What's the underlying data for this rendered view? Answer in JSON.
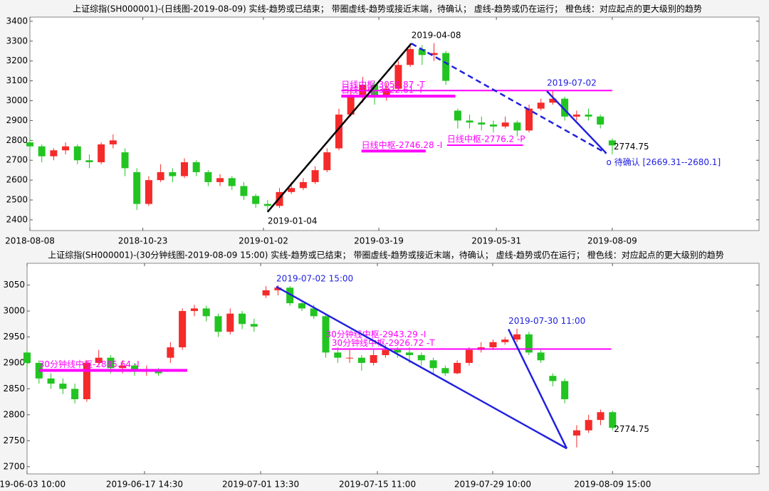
{
  "chart_data": [
    {
      "type": "candlestick",
      "title": "上证综指(SH000001)-(日线图-2019-08-09)  实线-趋势或已结束；  带圈虚线-趋势或接近末端，待确认；  虚线-趋势或仍在运行；  橙色线：对应起点的更大级别的趋势",
      "up_color": "#f52a2a",
      "down_color": "#22c422",
      "ylim": [
        2346,
        3421
      ],
      "yticks": [
        2400,
        2500,
        2600,
        2700,
        2800,
        2900,
        3000,
        3100,
        3200,
        3300,
        3400
      ],
      "xlim": [
        0,
        61.35
      ],
      "xticks": [
        {
          "value": 0,
          "label": "2018-08-08"
        },
        {
          "value": 9.5,
          "label": "2018-10-23"
        },
        {
          "value": 19.65,
          "label": "2019-01-02"
        },
        {
          "value": 29.36,
          "label": "2019-03-19"
        },
        {
          "value": 39.25,
          "label": "2019-05-31"
        },
        {
          "value": 49,
          "label": "2019-08-09"
        }
      ],
      "ohlc": [
        [
          2790,
          2810,
          2750,
          2770
        ],
        [
          2770,
          2780,
          2690,
          2720
        ],
        [
          2720,
          2760,
          2700,
          2750
        ],
        [
          2750,
          2790,
          2730,
          2770
        ],
        [
          2770,
          2780,
          2680,
          2700
        ],
        [
          2700,
          2730,
          2660,
          2690
        ],
        [
          2690,
          2790,
          2680,
          2780
        ],
        [
          2780,
          2830,
          2760,
          2800
        ],
        [
          2740,
          2760,
          2620,
          2660
        ],
        [
          2640,
          2660,
          2450,
          2480
        ],
        [
          2480,
          2620,
          2470,
          2600
        ],
        [
          2600,
          2680,
          2590,
          2640
        ],
        [
          2640,
          2660,
          2590,
          2620
        ],
        [
          2620,
          2710,
          2610,
          2690
        ],
        [
          2690,
          2700,
          2620,
          2640
        ],
        [
          2640,
          2650,
          2570,
          2590
        ],
        [
          2590,
          2630,
          2570,
          2610
        ],
        [
          2610,
          2620,
          2550,
          2570
        ],
        [
          2570,
          2590,
          2500,
          2520
        ],
        [
          2520,
          2530,
          2460,
          2480
        ],
        [
          2480,
          2500,
          2440,
          2470
        ],
        [
          2470,
          2560,
          2460,
          2540
        ],
        [
          2540,
          2590,
          2530,
          2560
        ],
        [
          2560,
          2610,
          2550,
          2590
        ],
        [
          2590,
          2670,
          2580,
          2650
        ],
        [
          2650,
          2760,
          2640,
          2740
        ],
        [
          2760,
          2960,
          2750,
          2930
        ],
        [
          2930,
          3060,
          2920,
          3030
        ],
        [
          3030,
          3120,
          2990,
          3080
        ],
        [
          3080,
          3100,
          2980,
          3020
        ],
        [
          3020,
          3090,
          3000,
          3060
        ],
        [
          3060,
          3200,
          3050,
          3180
        ],
        [
          3180,
          3288,
          3170,
          3260
        ],
        [
          3260,
          3280,
          3180,
          3230
        ],
        [
          3230,
          3290,
          3200,
          3240
        ],
        [
          3240,
          3250,
          3080,
          3100
        ],
        [
          2950,
          2960,
          2860,
          2900
        ],
        [
          2900,
          2930,
          2860,
          2890
        ],
        [
          2890,
          2920,
          2850,
          2880
        ],
        [
          2880,
          2900,
          2840,
          2870
        ],
        [
          2870,
          2920,
          2860,
          2890
        ],
        [
          2890,
          2900,
          2820,
          2850
        ],
        [
          2850,
          2980,
          2840,
          2960
        ],
        [
          2960,
          3010,
          2950,
          2990
        ],
        [
          2990,
          3048,
          2980,
          3010
        ],
        [
          3010,
          3020,
          2900,
          2920
        ],
        [
          2920,
          2950,
          2900,
          2930
        ],
        [
          2930,
          2960,
          2900,
          2920
        ],
        [
          2920,
          2930,
          2860,
          2880
        ],
        [
          2800,
          2810,
          2730,
          2774.75
        ]
      ],
      "segments": [
        {
          "color": "#000000",
          "dashed": false,
          "from": {
            "x": 20,
            "y": 2440,
            "label": "2019-01-04"
          },
          "to": {
            "x": 32.1,
            "y": 3288,
            "label": "2019-04-08"
          }
        },
        {
          "color": "#2020e0",
          "dashed": true,
          "from": {
            "x": 32.1,
            "y": 3288
          },
          "to": {
            "x": 48.5,
            "y": 2735,
            "label": "o 待确认 [2669.31--2680.1]"
          }
        },
        {
          "color": "#2020e0",
          "dashed": false,
          "from": {
            "x": 43.5,
            "y": 3048,
            "label": "2019-07-02"
          },
          "to": {
            "x": 48.5,
            "y": 2735
          }
        }
      ],
      "pivot_color": "#ff00ff",
      "pivots": [
        {
          "label": "日线中枢-3050.87 -T",
          "value": 3050.87,
          "from": 26.2,
          "to": 49,
          "thick": false
        },
        {
          "label": "日线中枢-3022.61 -I",
          "value": 3022.61,
          "from": 26.2,
          "to": 35.8,
          "thick": true
        },
        {
          "label": "日线中枢-2746.28 -I",
          "value": 2746.28,
          "from": 27.9,
          "to": 33.3,
          "thick": true
        },
        {
          "label": "日线中枢-2776.2 -P",
          "value": 2776.2,
          "from": 35.1,
          "to": 41.5,
          "thick": false
        }
      ]
    },
    {
      "type": "candlestick",
      "title": "上证综指(SH000001)-(30分钟线图-2019-08-09 15:00)  实线-趋势或已结束；  带圈虚线-趋势或接近末端，待确认；  虚线-趋势或仍在运行；  橙色线：对应起点的更大级别的趋势",
      "up_color": "#f52a2a",
      "down_color": "#22c422",
      "ylim": [
        2686,
        3092
      ],
      "yticks": [
        2700,
        2750,
        2800,
        2850,
        2900,
        2950,
        3000,
        3050
      ],
      "xlim": [
        0,
        61.26
      ],
      "xticks": [
        {
          "value": 0,
          "label": "2019-06-03 10:00"
        },
        {
          "value": 9.83,
          "label": "2019-06-17 14:30"
        },
        {
          "value": 19.55,
          "label": "2019-07-01 13:30"
        },
        {
          "value": 29.32,
          "label": "2019-07-15 11:00"
        },
        {
          "value": 38.97,
          "label": "2019-07-29 10:00"
        },
        {
          "value": 49,
          "label": "2019-08-09 15:00"
        }
      ],
      "ohlc": [
        [
          2920,
          2925,
          2890,
          2900
        ],
        [
          2900,
          2905,
          2860,
          2870
        ],
        [
          2870,
          2880,
          2850,
          2860
        ],
        [
          2860,
          2870,
          2840,
          2850
        ],
        [
          2850,
          2860,
          2822,
          2830
        ],
        [
          2830,
          2905,
          2825,
          2900
        ],
        [
          2900,
          2925,
          2895,
          2910
        ],
        [
          2910,
          2915,
          2880,
          2890
        ],
        [
          2890,
          2905,
          2880,
          2895
        ],
        [
          2895,
          2900,
          2875,
          2885
        ],
        [
          2885,
          2895,
          2875,
          2885
        ],
        [
          2885,
          2890,
          2875,
          2880
        ],
        [
          2910,
          2940,
          2900,
          2930
        ],
        [
          2930,
          3005,
          2925,
          3000
        ],
        [
          3000,
          3012,
          2990,
          3005
        ],
        [
          3005,
          3010,
          2980,
          2990
        ],
        [
          2990,
          2995,
          2950,
          2960
        ],
        [
          2960,
          3005,
          2955,
          2995
        ],
        [
          2995,
          3000,
          2965,
          2975
        ],
        [
          2975,
          2985,
          2960,
          2970
        ],
        [
          3030,
          3048,
          3025,
          3040
        ],
        [
          3040,
          3050,
          3030,
          3045
        ],
        [
          3045,
          3048,
          3010,
          3015
        ],
        [
          3015,
          3020,
          3000,
          3005
        ],
        [
          3005,
          3012,
          2985,
          2990
        ],
        [
          2990,
          2995,
          2910,
          2920
        ],
        [
          2920,
          2930,
          2900,
          2910
        ],
        [
          2910,
          2925,
          2900,
          2910
        ],
        [
          2910,
          2915,
          2885,
          2900
        ],
        [
          2900,
          2925,
          2895,
          2915
        ],
        [
          2915,
          2935,
          2910,
          2925
        ],
        [
          2925,
          2930,
          2910,
          2920
        ],
        [
          2920,
          2930,
          2900,
          2915
        ],
        [
          2915,
          2920,
          2895,
          2905
        ],
        [
          2905,
          2910,
          2880,
          2890
        ],
        [
          2890,
          2895,
          2875,
          2880
        ],
        [
          2880,
          2905,
          2878,
          2900
        ],
        [
          2900,
          2930,
          2895,
          2925
        ],
        [
          2925,
          2940,
          2920,
          2930
        ],
        [
          2930,
          2945,
          2925,
          2940
        ],
        [
          2940,
          2950,
          2935,
          2945
        ],
        [
          2945,
          2966,
          2940,
          2955
        ],
        [
          2955,
          2960,
          2915,
          2920
        ],
        [
          2920,
          2925,
          2900,
          2905
        ],
        [
          2875,
          2880,
          2855,
          2865
        ],
        [
          2865,
          2870,
          2822,
          2830
        ],
        [
          2760,
          2780,
          2737,
          2770
        ],
        [
          2770,
          2800,
          2765,
          2790
        ],
        [
          2790,
          2810,
          2780,
          2805
        ],
        [
          2805,
          2808,
          2770,
          2774.75
        ]
      ],
      "segments": [
        {
          "color": "#2020e0",
          "dashed": false,
          "from": {
            "x": 20.86,
            "y": 3047,
            "label": "2019-07-02 15:00"
          },
          "to": {
            "x": 45.17,
            "y": 2735
          }
        },
        {
          "color": "#2020e0",
          "dashed": false,
          "from": {
            "x": 40.29,
            "y": 2965,
            "label": "2019-07-30 11:00"
          },
          "to": {
            "x": 45.17,
            "y": 2735
          }
        }
      ],
      "pivot_color": "#ff00ff",
      "pivots": [
        {
          "label": "30分钟线中枢-2885.64 -I",
          "value": 2885.64,
          "from": 1,
          "to": 13.4,
          "thick": true
        },
        {
          "label": "30分钟线中枢-2943.29 -I",
          "value": 2943.29,
          "from": 25
        },
        {
          "label": "30分钟线中枢-2926.72 -T",
          "value": 2926.72,
          "from": 25.5,
          "to": 48.9,
          "thick": false
        }
      ]
    }
  ]
}
